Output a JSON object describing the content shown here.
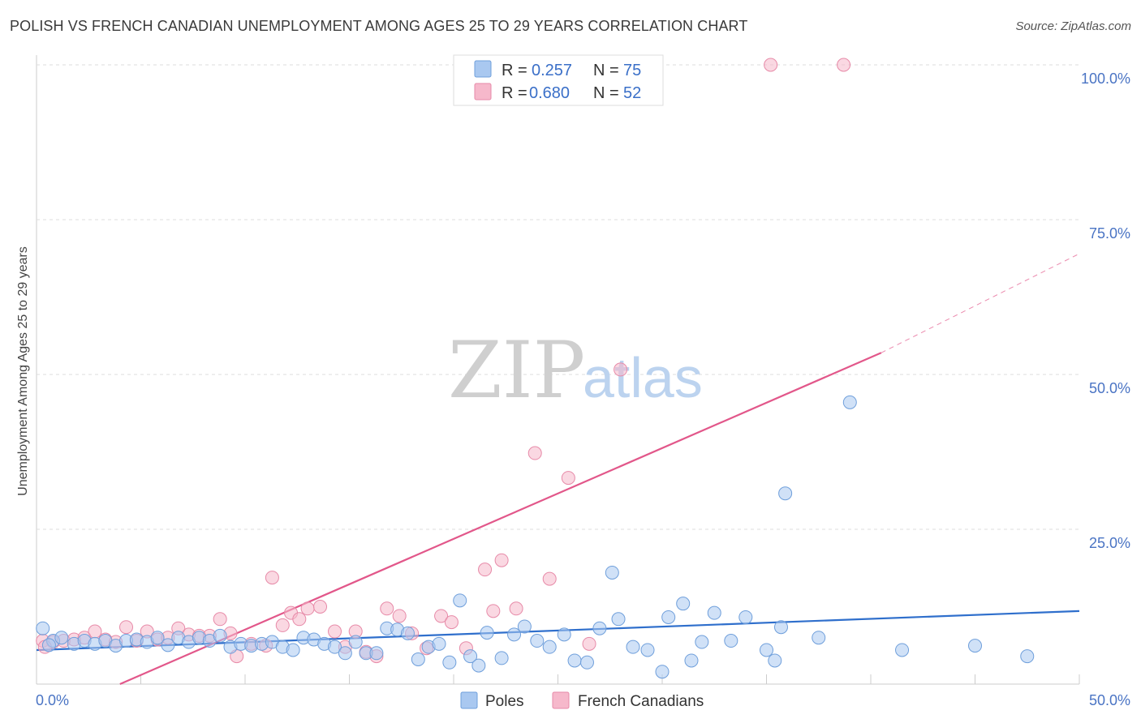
{
  "title": "POLISH VS FRENCH CANADIAN UNEMPLOYMENT AMONG AGES 25 TO 29 YEARS CORRELATION CHART",
  "source": "Source: ZipAtlas.com",
  "watermark": {
    "zip": "ZIP",
    "atlas": "atlas"
  },
  "colors": {
    "poles_fill": "#a9c8f0",
    "poles_stroke": "#6f9fdb",
    "poles_line": "#2f6fcc",
    "fc_fill": "#f6b8cb",
    "fc_stroke": "#e78aa8",
    "fc_line": "#e2578a",
    "grid": "#dddddd",
    "axis_text": "#4a74c4"
  },
  "legend": {
    "r_label": "R =",
    "n_label": "N =",
    "rows": [
      {
        "series": "Poles",
        "r": "0.257",
        "n": "75"
      },
      {
        "series": "French Canadians",
        "r": "0.680",
        "n": "52"
      }
    ]
  },
  "chart_data": {
    "type": "scatter",
    "title": "POLISH VS FRENCH CANADIAN UNEMPLOYMENT AMONG AGES 25 TO 29 YEARS CORRELATION CHART",
    "xlabel": "",
    "ylabel": "Unemployment Among Ages 25 to 29 years",
    "xlim": [
      0,
      50
    ],
    "ylim": [
      0,
      100
    ],
    "x_tick_labels": [
      "0.0%",
      "50.0%"
    ],
    "y_tick_labels": [
      {
        "value": 25,
        "label": "25.0%"
      },
      {
        "value": 50,
        "label": "50.0%"
      },
      {
        "value": 75,
        "label": "75.0%"
      },
      {
        "value": 100,
        "label": "100.0%"
      }
    ],
    "grid": true,
    "series": [
      {
        "name": "Poles",
        "trend": {
          "x0": 0,
          "y0": 5.5,
          "x1": 50,
          "y1": 11.8
        },
        "points": [
          [
            0.3,
            9.0
          ],
          [
            0.8,
            7.0
          ],
          [
            1.2,
            7.5
          ],
          [
            1.8,
            6.5
          ],
          [
            2.3,
            7.0
          ],
          [
            2.8,
            6.5
          ],
          [
            3.3,
            7.0
          ],
          [
            3.8,
            6.2
          ],
          [
            4.3,
            7.0
          ],
          [
            4.8,
            7.2
          ],
          [
            5.3,
            6.8
          ],
          [
            5.8,
            7.5
          ],
          [
            6.3,
            6.3
          ],
          [
            6.8,
            7.5
          ],
          [
            7.3,
            6.8
          ],
          [
            7.8,
            7.5
          ],
          [
            8.3,
            7.0
          ],
          [
            8.8,
            7.8
          ],
          [
            9.3,
            6.0
          ],
          [
            9.8,
            6.5
          ],
          [
            10.3,
            6.2
          ],
          [
            10.8,
            6.5
          ],
          [
            11.3,
            6.8
          ],
          [
            11.8,
            6.0
          ],
          [
            12.3,
            5.5
          ],
          [
            12.8,
            7.5
          ],
          [
            13.3,
            7.2
          ],
          [
            13.8,
            6.5
          ],
          [
            14.3,
            6.0
          ],
          [
            14.8,
            5.0
          ],
          [
            15.3,
            6.8
          ],
          [
            15.8,
            5.0
          ],
          [
            16.3,
            5.0
          ],
          [
            16.8,
            9.0
          ],
          [
            17.3,
            8.8
          ],
          [
            17.8,
            8.2
          ],
          [
            18.3,
            4.0
          ],
          [
            18.8,
            6.0
          ],
          [
            19.3,
            6.5
          ],
          [
            19.8,
            3.5
          ],
          [
            20.3,
            13.5
          ],
          [
            20.8,
            4.5
          ],
          [
            21.2,
            3.0
          ],
          [
            21.6,
            8.3
          ],
          [
            22.3,
            4.2
          ],
          [
            22.9,
            8.0
          ],
          [
            23.4,
            9.3
          ],
          [
            24.0,
            7.0
          ],
          [
            24.6,
            6.0
          ],
          [
            25.3,
            8.0
          ],
          [
            25.8,
            3.8
          ],
          [
            26.4,
            3.5
          ],
          [
            27.0,
            9.0
          ],
          [
            27.6,
            18.0
          ],
          [
            27.9,
            10.5
          ],
          [
            28.6,
            6.0
          ],
          [
            29.3,
            5.5
          ],
          [
            30.0,
            2.0
          ],
          [
            30.3,
            10.8
          ],
          [
            31.0,
            13.0
          ],
          [
            31.4,
            3.8
          ],
          [
            31.9,
            6.8
          ],
          [
            32.5,
            11.5
          ],
          [
            33.3,
            7.0
          ],
          [
            34.0,
            10.8
          ],
          [
            35.0,
            5.5
          ],
          [
            35.4,
            3.8
          ],
          [
            35.7,
            9.2
          ],
          [
            35.9,
            30.8
          ],
          [
            37.5,
            7.5
          ],
          [
            39.0,
            45.5
          ],
          [
            41.5,
            5.5
          ],
          [
            45.0,
            6.2
          ],
          [
            47.5,
            4.5
          ],
          [
            0.6,
            6.3
          ]
        ]
      },
      {
        "name": "French Canadians",
        "trend": {
          "x0": 4.0,
          "y0": 0,
          "x1": 40.5,
          "y1": 53.5
        },
        "trend_dashed": {
          "x0": 40.5,
          "y0": 53.5,
          "x1": 50,
          "y1": 69.5
        },
        "points": [
          [
            0.3,
            7.0
          ],
          [
            0.8,
            6.8
          ],
          [
            1.3,
            7.0
          ],
          [
            1.8,
            7.2
          ],
          [
            2.3,
            7.5
          ],
          [
            2.8,
            8.5
          ],
          [
            3.3,
            7.2
          ],
          [
            3.8,
            6.8
          ],
          [
            4.3,
            9.2
          ],
          [
            4.8,
            7.0
          ],
          [
            5.3,
            8.5
          ],
          [
            5.8,
            7.2
          ],
          [
            6.3,
            7.5
          ],
          [
            6.8,
            9.0
          ],
          [
            7.3,
            8.0
          ],
          [
            7.8,
            7.8
          ],
          [
            8.3,
            7.8
          ],
          [
            8.8,
            10.5
          ],
          [
            9.3,
            8.2
          ],
          [
            9.6,
            4.5
          ],
          [
            10.3,
            6.5
          ],
          [
            11.0,
            6.2
          ],
          [
            11.3,
            17.2
          ],
          [
            11.8,
            9.5
          ],
          [
            12.2,
            11.5
          ],
          [
            12.6,
            10.5
          ],
          [
            13.0,
            12.2
          ],
          [
            13.6,
            12.5
          ],
          [
            14.3,
            8.5
          ],
          [
            14.8,
            6.0
          ],
          [
            15.3,
            8.5
          ],
          [
            15.8,
            5.2
          ],
          [
            16.3,
            4.5
          ],
          [
            16.8,
            12.2
          ],
          [
            17.4,
            11.0
          ],
          [
            18.0,
            8.2
          ],
          [
            18.7,
            5.8
          ],
          [
            19.4,
            11.0
          ],
          [
            19.9,
            10.0
          ],
          [
            20.6,
            5.8
          ],
          [
            21.5,
            18.5
          ],
          [
            21.9,
            11.8
          ],
          [
            22.3,
            20.0
          ],
          [
            23.0,
            12.2
          ],
          [
            23.9,
            37.3
          ],
          [
            24.6,
            17.0
          ],
          [
            25.5,
            33.3
          ],
          [
            26.5,
            6.5
          ],
          [
            28.0,
            50.8
          ],
          [
            35.2,
            100.0
          ],
          [
            38.7,
            100.0
          ],
          [
            0.4,
            6.0
          ]
        ]
      }
    ],
    "legend_position": "top-center"
  },
  "bottom_legend": [
    {
      "series": "Poles",
      "label": "Poles"
    },
    {
      "series": "French Canadians",
      "label": "French Canadians"
    }
  ]
}
